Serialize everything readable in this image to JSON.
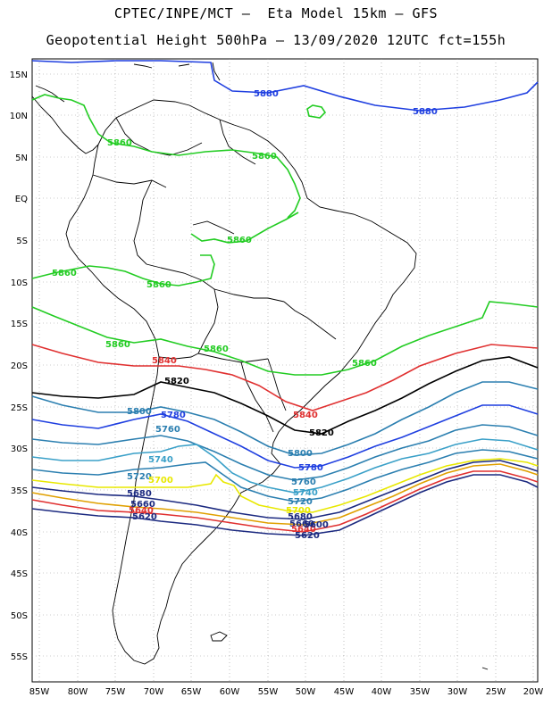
{
  "header": {
    "title_line1": "CPTEC/INPE/MCT –  Eta Model 15km – GFS",
    "title_line2": "Geopotential Height 500hPa – 13/09/2020 12UTC fct=155h"
  },
  "map": {
    "lat_labels": [
      "15N",
      "10N",
      "5N",
      "EQ",
      "5S",
      "10S",
      "15S",
      "20S",
      "25S",
      "30S",
      "35S",
      "40S",
      "45S",
      "50S",
      "55S"
    ],
    "lon_labels": [
      "85W",
      "80W",
      "75W",
      "70W",
      "65W",
      "60W",
      "55W",
      "50W",
      "45W",
      "40W",
      "35W",
      "30W",
      "25W",
      "20W"
    ],
    "grid": "dotted",
    "colors": {
      "c5880": "#1f3fe0",
      "c5860": "#22cc22",
      "c5840": "#e03030",
      "c5820": "#000000",
      "c5800": "#2b7fb0",
      "c5780": "#1f3fe0",
      "c5760": "#2b7fb0",
      "c5740": "#3aa0c8",
      "c5720": "#e8e800",
      "c5700": "#e0a000",
      "c5680": "#1c2a80",
      "coast": "#000000"
    },
    "contour_labels": {
      "l5880a": "5880",
      "l5880b": "5880",
      "l5860a": "5860",
      "l5860b": "5860",
      "l5860c": "5860",
      "l5860d": "5860",
      "l5860e": "5860",
      "l5860f": "5860",
      "l5860g": "5860",
      "l5860h": "5860",
      "l5840a": "5840",
      "l5840b": "5840",
      "l5820a": "5820",
      "l5820b": "5820",
      "l5800a": "5800",
      "l5800b": "5800",
      "l5780a": "5780",
      "l5780b": "5780",
      "l5760a": "5760",
      "l5760b": "5760",
      "l5740a": "5740",
      "l5740b": "5740",
      "l5720a": "5720",
      "l5720b": "5720",
      "l5700a": "5700",
      "l5700b": "5700",
      "l5680a": "5680",
      "l5680b": "5680",
      "l5660a": "5660",
      "l5660b": "5660",
      "l5640a": "5640",
      "l5640b": "5640",
      "l5620a": "5620",
      "l5620b": "5620",
      "l5600a": "5600"
    }
  }
}
